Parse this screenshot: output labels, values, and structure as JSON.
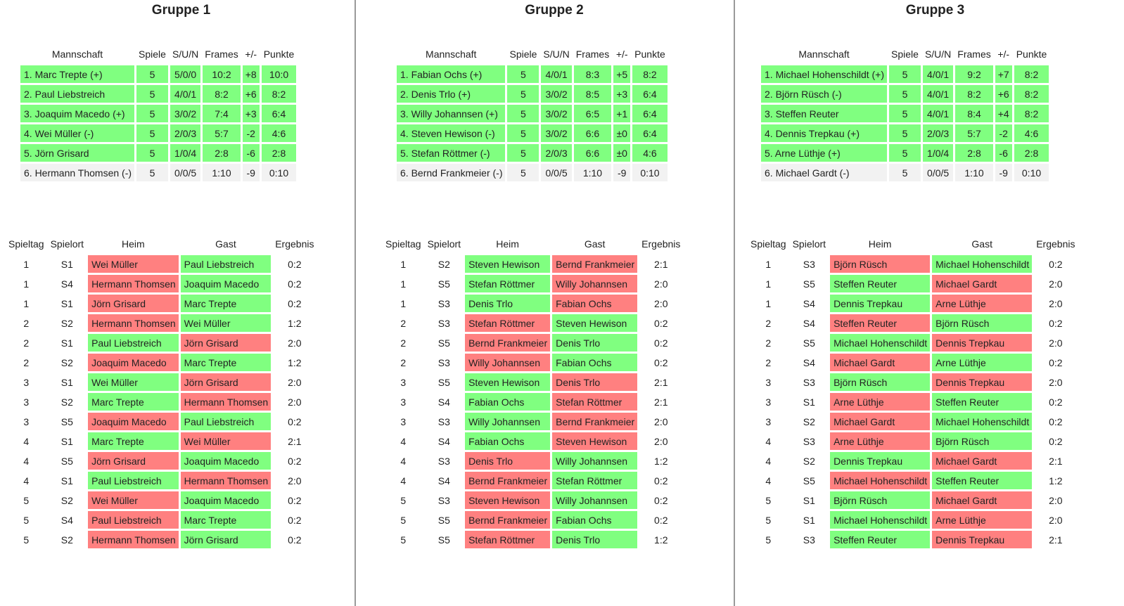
{
  "standings_headers": [
    "Mannschaft",
    "Spiele",
    "S/U/N",
    "Frames",
    "+/-",
    "Punkte"
  ],
  "fixture_headers": [
    "Spieltag",
    "Spielort",
    "Heim",
    "Gast",
    "Ergebnis"
  ],
  "colors": {
    "win": "#80ff80",
    "loss": "#ff8080",
    "neutral": "#f2f2f2",
    "divider": "#9a9a9a"
  },
  "groups": [
    {
      "title": "Gruppe 1",
      "standings": [
        {
          "team": "1. Marc Trepte (+)",
          "games": "5",
          "sun": "5/0/0",
          "frames": "10:2",
          "diff": "+8",
          "points": "10:0",
          "status": "green"
        },
        {
          "team": "2. Paul Liebstreich",
          "games": "5",
          "sun": "4/0/1",
          "frames": "8:2",
          "diff": "+6",
          "points": "8:2",
          "status": "green"
        },
        {
          "team": "3. Joaquim Macedo (+)",
          "games": "5",
          "sun": "3/0/2",
          "frames": "7:4",
          "diff": "+3",
          "points": "6:4",
          "status": "green"
        },
        {
          "team": "4. Wei Müller (-)",
          "games": "5",
          "sun": "2/0/3",
          "frames": "5:7",
          "diff": "-2",
          "points": "4:6",
          "status": "green"
        },
        {
          "team": "5. Jörn Grisard",
          "games": "5",
          "sun": "1/0/4",
          "frames": "2:8",
          "diff": "-6",
          "points": "2:8",
          "status": "green"
        },
        {
          "team": "6. Hermann Thomsen (-)",
          "games": "5",
          "sun": "0/0/5",
          "frames": "1:10",
          "diff": "-9",
          "points": "0:10",
          "status": "grey"
        }
      ],
      "fixtures": [
        {
          "day": "1",
          "venue": "S1",
          "home": "Wei Müller",
          "away": "Paul Liebstreich",
          "result": "0:2",
          "home_status": "red",
          "away_status": "green"
        },
        {
          "day": "1",
          "venue": "S4",
          "home": "Hermann Thomsen",
          "away": "Joaquim Macedo",
          "result": "0:2",
          "home_status": "red",
          "away_status": "green"
        },
        {
          "day": "1",
          "venue": "S1",
          "home": "Jörn Grisard",
          "away": "Marc Trepte",
          "result": "0:2",
          "home_status": "red",
          "away_status": "green"
        },
        {
          "day": "2",
          "venue": "S2",
          "home": "Hermann Thomsen",
          "away": "Wei Müller",
          "result": "1:2",
          "home_status": "red",
          "away_status": "green"
        },
        {
          "day": "2",
          "venue": "S1",
          "home": "Paul Liebstreich",
          "away": "Jörn Grisard",
          "result": "2:0",
          "home_status": "green",
          "away_status": "red"
        },
        {
          "day": "2",
          "venue": "S2",
          "home": "Joaquim Macedo",
          "away": "Marc Trepte",
          "result": "1:2",
          "home_status": "red",
          "away_status": "green"
        },
        {
          "day": "3",
          "venue": "S1",
          "home": "Wei Müller",
          "away": "Jörn Grisard",
          "result": "2:0",
          "home_status": "green",
          "away_status": "red"
        },
        {
          "day": "3",
          "venue": "S2",
          "home": "Marc Trepte",
          "away": "Hermann Thomsen",
          "result": "2:0",
          "home_status": "green",
          "away_status": "red"
        },
        {
          "day": "3",
          "venue": "S5",
          "home": "Joaquim Macedo",
          "away": "Paul Liebstreich",
          "result": "0:2",
          "home_status": "red",
          "away_status": "green"
        },
        {
          "day": "4",
          "venue": "S1",
          "home": "Marc Trepte",
          "away": "Wei Müller",
          "result": "2:1",
          "home_status": "green",
          "away_status": "red"
        },
        {
          "day": "4",
          "venue": "S5",
          "home": "Jörn Grisard",
          "away": "Joaquim Macedo",
          "result": "0:2",
          "home_status": "red",
          "away_status": "green"
        },
        {
          "day": "4",
          "venue": "S1",
          "home": "Paul Liebstreich",
          "away": "Hermann Thomsen",
          "result": "2:0",
          "home_status": "green",
          "away_status": "red"
        },
        {
          "day": "5",
          "venue": "S2",
          "home": "Wei Müller",
          "away": "Joaquim Macedo",
          "result": "0:2",
          "home_status": "red",
          "away_status": "green"
        },
        {
          "day": "5",
          "venue": "S4",
          "home": "Paul Liebstreich",
          "away": "Marc Trepte",
          "result": "0:2",
          "home_status": "red",
          "away_status": "green"
        },
        {
          "day": "5",
          "venue": "S2",
          "home": "Hermann Thomsen",
          "away": "Jörn Grisard",
          "result": "0:2",
          "home_status": "red",
          "away_status": "green"
        }
      ]
    },
    {
      "title": "Gruppe 2",
      "standings": [
        {
          "team": "1. Fabian Ochs (+)",
          "games": "5",
          "sun": "4/0/1",
          "frames": "8:3",
          "diff": "+5",
          "points": "8:2",
          "status": "green"
        },
        {
          "team": "2. Denis Trlo (+)",
          "games": "5",
          "sun": "3/0/2",
          "frames": "8:5",
          "diff": "+3",
          "points": "6:4",
          "status": "green"
        },
        {
          "team": "3. Willy Johannsen (+)",
          "games": "5",
          "sun": "3/0/2",
          "frames": "6:5",
          "diff": "+1",
          "points": "6:4",
          "status": "green"
        },
        {
          "team": "4. Steven Hewison (-)",
          "games": "5",
          "sun": "3/0/2",
          "frames": "6:6",
          "diff": "±0",
          "points": "6:4",
          "status": "green"
        },
        {
          "team": "5. Stefan Röttmer (-)",
          "games": "5",
          "sun": "2/0/3",
          "frames": "6:6",
          "diff": "±0",
          "points": "4:6",
          "status": "green"
        },
        {
          "team": "6. Bernd Frankmeier (-)",
          "games": "5",
          "sun": "0/0/5",
          "frames": "1:10",
          "diff": "-9",
          "points": "0:10",
          "status": "grey"
        }
      ],
      "fixtures": [
        {
          "day": "1",
          "venue": "S2",
          "home": "Steven Hewison",
          "away": "Bernd Frankmeier",
          "result": "2:1",
          "home_status": "green",
          "away_status": "red"
        },
        {
          "day": "1",
          "venue": "S5",
          "home": "Stefan Röttmer",
          "away": "Willy Johannsen",
          "result": "2:0",
          "home_status": "green",
          "away_status": "red"
        },
        {
          "day": "1",
          "venue": "S3",
          "home": "Denis Trlo",
          "away": "Fabian Ochs",
          "result": "2:0",
          "home_status": "green",
          "away_status": "red"
        },
        {
          "day": "2",
          "venue": "S3",
          "home": "Stefan Röttmer",
          "away": "Steven Hewison",
          "result": "0:2",
          "home_status": "red",
          "away_status": "green"
        },
        {
          "day": "2",
          "venue": "S5",
          "home": "Bernd Frankmeier",
          "away": "Denis Trlo",
          "result": "0:2",
          "home_status": "red",
          "away_status": "green"
        },
        {
          "day": "2",
          "venue": "S3",
          "home": "Willy Johannsen",
          "away": "Fabian Ochs",
          "result": "0:2",
          "home_status": "red",
          "away_status": "green"
        },
        {
          "day": "3",
          "venue": "S5",
          "home": "Steven Hewison",
          "away": "Denis Trlo",
          "result": "2:1",
          "home_status": "green",
          "away_status": "red"
        },
        {
          "day": "3",
          "venue": "S4",
          "home": "Fabian Ochs",
          "away": "Stefan Röttmer",
          "result": "2:1",
          "home_status": "green",
          "away_status": "red"
        },
        {
          "day": "3",
          "venue": "S3",
          "home": "Willy Johannsen",
          "away": "Bernd Frankmeier",
          "result": "2:0",
          "home_status": "green",
          "away_status": "red"
        },
        {
          "day": "4",
          "venue": "S4",
          "home": "Fabian Ochs",
          "away": "Steven Hewison",
          "result": "2:0",
          "home_status": "green",
          "away_status": "red"
        },
        {
          "day": "4",
          "venue": "S3",
          "home": "Denis Trlo",
          "away": "Willy Johannsen",
          "result": "1:2",
          "home_status": "red",
          "away_status": "green"
        },
        {
          "day": "4",
          "venue": "S4",
          "home": "Bernd Frankmeier",
          "away": "Stefan Röttmer",
          "result": "0:2",
          "home_status": "red",
          "away_status": "green"
        },
        {
          "day": "5",
          "venue": "S3",
          "home": "Steven Hewison",
          "away": "Willy Johannsen",
          "result": "0:2",
          "home_status": "red",
          "away_status": "green"
        },
        {
          "day": "5",
          "venue": "S5",
          "home": "Bernd Frankmeier",
          "away": "Fabian Ochs",
          "result": "0:2",
          "home_status": "red",
          "away_status": "green"
        },
        {
          "day": "5",
          "venue": "S5",
          "home": "Stefan Röttmer",
          "away": "Denis Trlo",
          "result": "1:2",
          "home_status": "red",
          "away_status": "green"
        }
      ]
    },
    {
      "title": "Gruppe 3",
      "standings": [
        {
          "team": "1. Michael Hohenschildt (+)",
          "games": "5",
          "sun": "4/0/1",
          "frames": "9:2",
          "diff": "+7",
          "points": "8:2",
          "status": "green"
        },
        {
          "team": "2. Björn Rüsch (-)",
          "games": "5",
          "sun": "4/0/1",
          "frames": "8:2",
          "diff": "+6",
          "points": "8:2",
          "status": "green"
        },
        {
          "team": "3. Steffen Reuter",
          "games": "5",
          "sun": "4/0/1",
          "frames": "8:4",
          "diff": "+4",
          "points": "8:2",
          "status": "green"
        },
        {
          "team": "4. Dennis Trepkau (+)",
          "games": "5",
          "sun": "2/0/3",
          "frames": "5:7",
          "diff": "-2",
          "points": "4:6",
          "status": "green"
        },
        {
          "team": "5. Arne Lüthje (+)",
          "games": "5",
          "sun": "1/0/4",
          "frames": "2:8",
          "diff": "-6",
          "points": "2:8",
          "status": "green"
        },
        {
          "team": "6. Michael Gardt (-)",
          "games": "5",
          "sun": "0/0/5",
          "frames": "1:10",
          "diff": "-9",
          "points": "0:10",
          "status": "grey"
        }
      ],
      "fixtures": [
        {
          "day": "1",
          "venue": "S3",
          "home": "Björn Rüsch",
          "away": "Michael Hohenschildt",
          "result": "0:2",
          "home_status": "red",
          "away_status": "green"
        },
        {
          "day": "1",
          "venue": "S5",
          "home": "Steffen Reuter",
          "away": "Michael Gardt",
          "result": "2:0",
          "home_status": "green",
          "away_status": "red"
        },
        {
          "day": "1",
          "venue": "S4",
          "home": "Dennis Trepkau",
          "away": "Arne Lüthje",
          "result": "2:0",
          "home_status": "green",
          "away_status": "red"
        },
        {
          "day": "2",
          "venue": "S4",
          "home": "Steffen Reuter",
          "away": "Björn Rüsch",
          "result": "0:2",
          "home_status": "red",
          "away_status": "green"
        },
        {
          "day": "2",
          "venue": "S5",
          "home": "Michael Hohenschildt",
          "away": "Dennis Trepkau",
          "result": "2:0",
          "home_status": "green",
          "away_status": "red"
        },
        {
          "day": "2",
          "venue": "S4",
          "home": "Michael Gardt",
          "away": "Arne Lüthje",
          "result": "0:2",
          "home_status": "red",
          "away_status": "green"
        },
        {
          "day": "3",
          "venue": "S3",
          "home": "Björn Rüsch",
          "away": "Dennis Trepkau",
          "result": "2:0",
          "home_status": "green",
          "away_status": "red"
        },
        {
          "day": "3",
          "venue": "S1",
          "home": "Arne Lüthje",
          "away": "Steffen Reuter",
          "result": "0:2",
          "home_status": "red",
          "away_status": "green"
        },
        {
          "day": "3",
          "venue": "S2",
          "home": "Michael Gardt",
          "away": "Michael Hohenschildt",
          "result": "0:2",
          "home_status": "red",
          "away_status": "green"
        },
        {
          "day": "4",
          "venue": "S3",
          "home": "Arne Lüthje",
          "away": "Björn Rüsch",
          "result": "0:2",
          "home_status": "red",
          "away_status": "green"
        },
        {
          "day": "4",
          "venue": "S2",
          "home": "Dennis Trepkau",
          "away": "Michael Gardt",
          "result": "2:1",
          "home_status": "green",
          "away_status": "red"
        },
        {
          "day": "4",
          "venue": "S5",
          "home": "Michael Hohenschildt",
          "away": "Steffen Reuter",
          "result": "1:2",
          "home_status": "red",
          "away_status": "green"
        },
        {
          "day": "5",
          "venue": "S1",
          "home": "Björn Rüsch",
          "away": "Michael Gardt",
          "result": "2:0",
          "home_status": "green",
          "away_status": "red"
        },
        {
          "day": "5",
          "venue": "S1",
          "home": "Michael Hohenschildt",
          "away": "Arne Lüthje",
          "result": "2:0",
          "home_status": "green",
          "away_status": "red"
        },
        {
          "day": "5",
          "venue": "S3",
          "home": "Steffen Reuter",
          "away": "Dennis Trepkau",
          "result": "2:1",
          "home_status": "green",
          "away_status": "red"
        }
      ]
    }
  ]
}
